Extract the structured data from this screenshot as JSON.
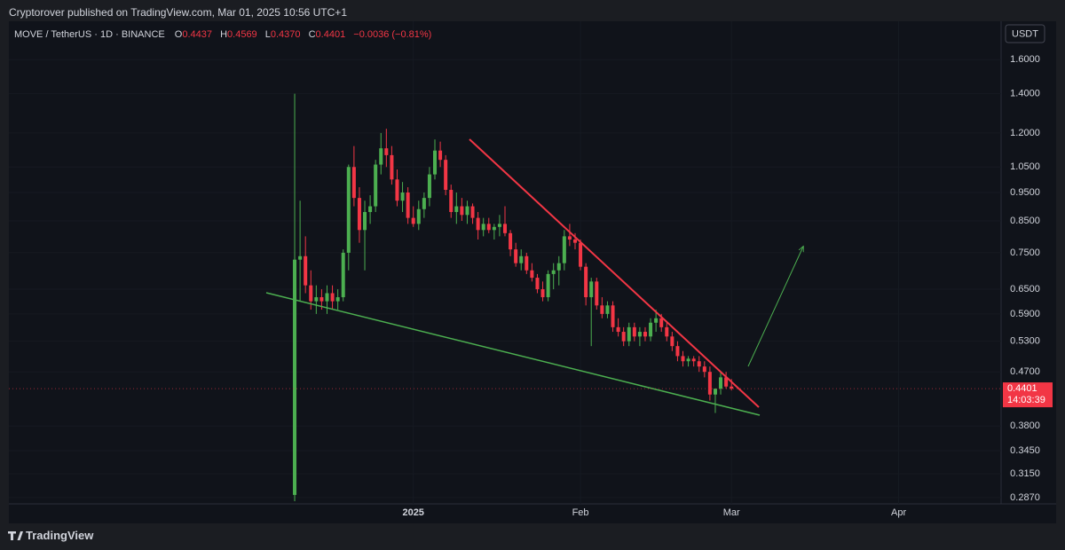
{
  "header": {
    "published": "Cryptorover published on TradingView.com, Mar 01, 2025 10:56 UTC+1"
  },
  "legend": {
    "symbol": "MOVE / TetherUS · 1D · BINANCE",
    "items": [
      {
        "key": "O",
        "value": "0.4437"
      },
      {
        "key": "H",
        "value": "0.4569"
      },
      {
        "key": "L",
        "value": "0.4370"
      },
      {
        "key": "C",
        "value": "0.4401"
      }
    ],
    "change": "−0.0036 (−0.81%)"
  },
  "currency": "USDT",
  "countdown": "14:03:39",
  "footer": {
    "brand": "TradingView"
  },
  "chart_data": {
    "type": "candlestick",
    "log_scale": true,
    "grid": true,
    "up_color": "#4caf50",
    "down_color": "#f23645",
    "xlim": [
      -53,
      131
    ],
    "xticks": [
      {
        "value": 22,
        "label": "2025"
      },
      {
        "value": 53,
        "label": "Feb"
      },
      {
        "value": 81,
        "label": "Mar"
      },
      {
        "value": 112,
        "label": "Apr"
      }
    ],
    "ylim": [
      0.28,
      1.86
    ],
    "yticks": [
      {
        "value": 1.6,
        "label": "1.6000"
      },
      {
        "value": 1.4,
        "label": "1.4000"
      },
      {
        "value": 1.2,
        "label": "1.2000"
      },
      {
        "value": 1.05,
        "label": "1.0500"
      },
      {
        "value": 0.95,
        "label": "0.9500"
      },
      {
        "value": 0.85,
        "label": "0.8500"
      },
      {
        "value": 0.75,
        "label": "0.7500"
      },
      {
        "value": 0.65,
        "label": "0.6500"
      },
      {
        "value": 0.59,
        "label": "0.5900"
      },
      {
        "value": 0.53,
        "label": "0.5300"
      },
      {
        "value": 0.47,
        "label": "0.4700"
      },
      {
        "value": 0.38,
        "label": "0.3800"
      },
      {
        "value": 0.345,
        "label": "0.3450"
      },
      {
        "value": 0.315,
        "label": "0.3150"
      },
      {
        "value": 0.287,
        "label": "0.2870"
      }
    ],
    "x": [
      0,
      1,
      2,
      3,
      4,
      5,
      6,
      7,
      8,
      9,
      10,
      11,
      12,
      13,
      14,
      15,
      16,
      17,
      18,
      19,
      20,
      21,
      22,
      23,
      24,
      25,
      26,
      27,
      28,
      29,
      30,
      31,
      32,
      33,
      34,
      35,
      36,
      37,
      38,
      39,
      40,
      41,
      42,
      43,
      44,
      45,
      46,
      47,
      48,
      49,
      50,
      51,
      52,
      53,
      54,
      55,
      56,
      57,
      58,
      59,
      60,
      61,
      62,
      63,
      64,
      65,
      66,
      67,
      68,
      69,
      70,
      71,
      72,
      73,
      74,
      75,
      76,
      77,
      78,
      79,
      80,
      81
    ],
    "open": [
      0.29,
      0.73,
      0.74,
      0.66,
      0.62,
      0.63,
      0.62,
      0.64,
      0.62,
      0.63,
      0.75,
      1.05,
      0.93,
      0.82,
      0.88,
      0.9,
      1.06,
      1.13,
      1.1,
      1.0,
      0.92,
      0.95,
      0.86,
      0.84,
      0.89,
      0.93,
      1.02,
      1.12,
      1.08,
      0.96,
      0.88,
      0.9,
      0.87,
      0.9,
      0.86,
      0.82,
      0.84,
      0.82,
      0.83,
      0.84,
      0.81,
      0.76,
      0.72,
      0.74,
      0.7,
      0.68,
      0.65,
      0.63,
      0.69,
      0.7,
      0.72,
      0.8,
      0.79,
      0.78,
      0.71,
      0.63,
      0.67,
      0.61,
      0.59,
      0.61,
      0.56,
      0.55,
      0.53,
      0.56,
      0.54,
      0.55,
      0.54,
      0.57,
      0.58,
      0.56,
      0.54,
      0.52,
      0.5,
      0.49,
      0.495,
      0.49,
      0.48,
      0.47,
      0.43,
      0.44,
      0.46,
      0.4437
    ],
    "high": [
      1.4,
      0.92,
      0.8,
      0.7,
      0.66,
      0.65,
      0.66,
      0.66,
      0.65,
      0.76,
      1.06,
      1.14,
      0.97,
      0.92,
      0.94,
      1.08,
      1.2,
      1.22,
      1.14,
      1.04,
      0.99,
      0.97,
      0.9,
      0.92,
      0.95,
      1.05,
      1.17,
      1.16,
      1.1,
      0.98,
      0.95,
      0.93,
      0.92,
      0.91,
      0.88,
      0.86,
      0.86,
      0.84,
      0.87,
      0.9,
      0.82,
      0.78,
      0.76,
      0.75,
      0.72,
      0.69,
      0.67,
      0.7,
      0.72,
      0.74,
      0.82,
      0.84,
      0.81,
      0.79,
      0.72,
      0.68,
      0.68,
      0.63,
      0.62,
      0.62,
      0.58,
      0.56,
      0.57,
      0.57,
      0.56,
      0.56,
      0.58,
      0.6,
      0.59,
      0.57,
      0.55,
      0.53,
      0.51,
      0.5,
      0.5,
      0.5,
      0.49,
      0.48,
      0.44,
      0.47,
      0.47,
      0.4569
    ],
    "low": [
      0.283,
      0.62,
      0.64,
      0.6,
      0.59,
      0.6,
      0.59,
      0.6,
      0.6,
      0.62,
      0.7,
      0.9,
      0.78,
      0.7,
      0.84,
      0.88,
      1.02,
      1.05,
      0.98,
      0.9,
      0.88,
      0.84,
      0.83,
      0.82,
      0.86,
      0.9,
      1.0,
      1.05,
      0.94,
      0.86,
      0.84,
      0.85,
      0.84,
      0.84,
      0.79,
      0.8,
      0.81,
      0.79,
      0.8,
      0.8,
      0.74,
      0.71,
      0.7,
      0.69,
      0.67,
      0.64,
      0.62,
      0.62,
      0.65,
      0.66,
      0.7,
      0.77,
      0.76,
      0.7,
      0.61,
      0.52,
      0.6,
      0.58,
      0.58,
      0.55,
      0.54,
      0.52,
      0.52,
      0.53,
      0.52,
      0.53,
      0.53,
      0.55,
      0.55,
      0.53,
      0.51,
      0.49,
      0.48,
      0.48,
      0.48,
      0.47,
      0.46,
      0.42,
      0.4,
      0.43,
      0.44,
      0.437
    ],
    "close": [
      0.73,
      0.74,
      0.66,
      0.62,
      0.63,
      0.62,
      0.64,
      0.62,
      0.63,
      0.75,
      1.05,
      0.93,
      0.82,
      0.88,
      0.9,
      1.06,
      1.13,
      1.1,
      1.0,
      0.92,
      0.95,
      0.86,
      0.84,
      0.89,
      0.93,
      1.02,
      1.12,
      1.08,
      0.96,
      0.88,
      0.9,
      0.87,
      0.9,
      0.86,
      0.82,
      0.84,
      0.82,
      0.83,
      0.84,
      0.81,
      0.76,
      0.72,
      0.74,
      0.7,
      0.68,
      0.65,
      0.63,
      0.69,
      0.7,
      0.72,
      0.8,
      0.79,
      0.78,
      0.71,
      0.63,
      0.67,
      0.61,
      0.59,
      0.61,
      0.56,
      0.55,
      0.53,
      0.56,
      0.54,
      0.55,
      0.54,
      0.57,
      0.58,
      0.56,
      0.54,
      0.52,
      0.5,
      0.49,
      0.495,
      0.49,
      0.48,
      0.47,
      0.43,
      0.44,
      0.46,
      0.4437,
      0.4401
    ]
  }
}
